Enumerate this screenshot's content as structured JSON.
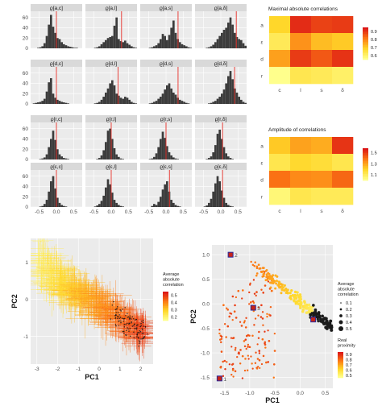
{
  "chart_data": [
    {
      "type": "histogram",
      "panels": [
        {
          "label": "ϱ[a,c]",
          "ref": 0.0,
          "counts": [
            0,
            0,
            0,
            1,
            2,
            4,
            10,
            24,
            46,
            65,
            42,
            30,
            20,
            18,
            12,
            8,
            6,
            4,
            3,
            2,
            1,
            1,
            0,
            0
          ]
        },
        {
          "label": "ϱ[a,l]",
          "ref": 0.3,
          "counts": [
            0,
            0,
            0,
            0,
            1,
            2,
            4,
            8,
            12,
            16,
            20,
            22,
            24,
            44,
            60,
            18,
            14,
            12,
            15,
            10,
            7,
            4,
            2,
            1
          ]
        },
        {
          "label": "ϱ[a,s]",
          "ref": 0.35,
          "counts": [
            0,
            0,
            0,
            0,
            1,
            2,
            4,
            6,
            10,
            18,
            28,
            24,
            16,
            26,
            40,
            54,
            30,
            18,
            12,
            8,
            6,
            4,
            2,
            1
          ]
        },
        {
          "label": "ϱ[a,δ]",
          "ref": 0.45,
          "counts": [
            0,
            0,
            0,
            0,
            0,
            1,
            2,
            4,
            7,
            12,
            18,
            24,
            30,
            36,
            40,
            50,
            60,
            46,
            30,
            22,
            18,
            16,
            10,
            5
          ]
        },
        {
          "label": "ϱ[d,c]",
          "ref": 0.0,
          "counts": [
            0,
            1,
            2,
            3,
            4,
            6,
            10,
            24,
            42,
            50,
            20,
            12,
            8,
            6,
            4,
            3,
            2,
            1,
            0,
            0,
            0,
            0,
            0,
            0
          ]
        },
        {
          "label": "ϱ[d,l]",
          "ref": 0.2,
          "counts": [
            0,
            0,
            0,
            0,
            1,
            2,
            4,
            8,
            14,
            22,
            30,
            40,
            46,
            36,
            20,
            16,
            12,
            10,
            14,
            12,
            8,
            4,
            2,
            1
          ]
        },
        {
          "label": "ϱ[d,s]",
          "ref": 0.35,
          "counts": [
            0,
            0,
            0,
            0,
            1,
            2,
            4,
            6,
            10,
            14,
            20,
            28,
            36,
            40,
            30,
            22,
            18,
            12,
            8,
            6,
            4,
            2,
            1,
            0
          ]
        },
        {
          "label": "ϱ[d,δ]",
          "ref": 0.4,
          "counts": [
            0,
            0,
            0,
            0,
            0,
            0,
            1,
            2,
            4,
            6,
            10,
            14,
            20,
            28,
            40,
            54,
            64,
            48,
            30,
            22,
            14,
            8,
            4,
            2
          ]
        },
        {
          "label": "ϱ[r,c]",
          "ref": 0.0,
          "counts": [
            0,
            0,
            0,
            0,
            1,
            2,
            4,
            10,
            24,
            40,
            56,
            38,
            20,
            10,
            6,
            3,
            2,
            1,
            0,
            0,
            0,
            0,
            0,
            0
          ]
        },
        {
          "label": "ϱ[r,l]",
          "ref": 0.0,
          "counts": [
            0,
            0,
            0,
            0,
            0,
            1,
            3,
            8,
            18,
            34,
            56,
            60,
            40,
            22,
            10,
            5,
            2,
            1,
            0,
            0,
            0,
            0,
            0,
            0
          ]
        },
        {
          "label": "ϱ[r,s]",
          "ref": 0.0,
          "counts": [
            0,
            0,
            0,
            0,
            1,
            2,
            5,
            12,
            24,
            40,
            54,
            42,
            26,
            14,
            8,
            4,
            2,
            1,
            0,
            0,
            0,
            0,
            0,
            0
          ]
        },
        {
          "label": "ϱ[r,δ]",
          "ref": 0.05,
          "counts": [
            0,
            0,
            0,
            0,
            0,
            1,
            3,
            6,
            14,
            28,
            50,
            58,
            40,
            24,
            12,
            6,
            3,
            1,
            0,
            0,
            0,
            0,
            0,
            0
          ]
        },
        {
          "label": "ϱ[ε,c]",
          "ref": 0.0,
          "counts": [
            0,
            0,
            0,
            0,
            1,
            2,
            6,
            14,
            30,
            50,
            60,
            36,
            18,
            8,
            4,
            2,
            1,
            0,
            0,
            0,
            0,
            0,
            0,
            0
          ]
        },
        {
          "label": "ϱ[ε,l]",
          "ref": 0.0,
          "counts": [
            0,
            0,
            0,
            0,
            1,
            3,
            6,
            12,
            22,
            38,
            54,
            44,
            28,
            14,
            8,
            4,
            2,
            1,
            0,
            0,
            0,
            0,
            0,
            0
          ]
        },
        {
          "label": "ϱ[ε,s]",
          "ref": 0.1,
          "counts": [
            0,
            0,
            0,
            0,
            0,
            2,
            6,
            4,
            10,
            20,
            34,
            44,
            50,
            30,
            14,
            8,
            4,
            2,
            1,
            0,
            0,
            0,
            0,
            0
          ]
        },
        {
          "label": "ϱ[ε,δ]",
          "ref": 0.05,
          "counts": [
            0,
            0,
            0,
            0,
            1,
            3,
            8,
            16,
            30,
            46,
            60,
            50,
            32,
            18,
            8,
            4,
            2,
            1,
            0,
            0,
            0,
            0,
            0,
            0
          ]
        }
      ],
      "x_ticks": [
        "-0.5",
        "0.0",
        "0.5"
      ],
      "y_ticks": [
        "0",
        "20",
        "40",
        "60"
      ],
      "xlim": [
        -0.75,
        0.75
      ],
      "ylim": [
        0,
        72
      ]
    },
    {
      "type": "heatmap",
      "title": "Maximal absolute correlations",
      "rows": [
        "a",
        "ε",
        "d",
        "r"
      ],
      "cols": [
        "c",
        "l",
        "s",
        "δ"
      ],
      "values": [
        [
          0.68,
          0.92,
          0.89,
          0.9
        ],
        [
          0.62,
          0.78,
          0.72,
          0.7
        ],
        [
          0.76,
          0.9,
          0.86,
          0.91
        ],
        [
          0.55,
          0.63,
          0.62,
          0.6
        ]
      ],
      "legend_ticks": [
        "0.9",
        "0.8",
        "0.7",
        "0.6"
      ],
      "range": [
        0.55,
        0.95
      ]
    },
    {
      "type": "heatmap",
      "title": "Amplitude of correlations",
      "rows": [
        "a",
        "ε",
        "d",
        "r"
      ],
      "cols": [
        "c",
        "l",
        "s",
        "δ"
      ],
      "values": [
        [
          1.22,
          1.3,
          1.28,
          1.52
        ],
        [
          1.12,
          1.18,
          1.16,
          1.12
        ],
        [
          1.4,
          1.35,
          1.34,
          1.42
        ],
        [
          1.04,
          1.12,
          1.1,
          1.1
        ]
      ],
      "legend_ticks": [
        "1.5",
        "1.3",
        "1.1"
      ],
      "range": [
        1.0,
        1.58
      ]
    },
    {
      "type": "scatter",
      "xlabel": "PC1",
      "ylabel": "PC2",
      "x_ticks": [
        "-3",
        "-2",
        "-1",
        "0",
        "1",
        "2"
      ],
      "y_ticks": [
        "1",
        "0",
        "-1"
      ],
      "xlim": [
        -3.3,
        2.6
      ],
      "ylim": [
        -1.75,
        1.65
      ],
      "legend_title": [
        "Average",
        "absolute",
        "correlation"
      ],
      "legend_ticks": [
        "0.5",
        "0.4",
        "0.3",
        "0.2"
      ],
      "range": [
        0.15,
        0.55
      ]
    },
    {
      "type": "scatter",
      "xlabel": "PC1",
      "ylabel": "PC2",
      "x_ticks": [
        "-1.5",
        "-1.0",
        "-0.5",
        "0.0",
        "0.5"
      ],
      "y_ticks": [
        "1.0",
        "0.5",
        "0.0",
        "-0.5",
        "-1.0",
        "-1.5"
      ],
      "xlim": [
        -1.75,
        0.65
      ],
      "ylim": [
        -1.72,
        1.2
      ],
      "size_legend_title": [
        "Average",
        "absolute",
        "correlation"
      ],
      "size_legend_values": [
        "0.1",
        "0.2",
        "0.3",
        "0.4",
        "0.5"
      ],
      "color_legend_title": [
        "Real",
        "proximity"
      ],
      "color_legend_ticks": [
        "0.9",
        "0.8",
        "0.7",
        "0.6",
        "0.5"
      ],
      "range": [
        0.45,
        0.95
      ],
      "labeled_points": [
        {
          "label": "1",
          "x": -1.6,
          "y": -1.52
        },
        {
          "label": "2",
          "x": -1.38,
          "y": 1.0
        },
        {
          "label": "3",
          "x": -0.93,
          "y": -0.08
        },
        {
          "label": "4",
          "x": 0.26,
          "y": -0.32
        }
      ]
    }
  ]
}
